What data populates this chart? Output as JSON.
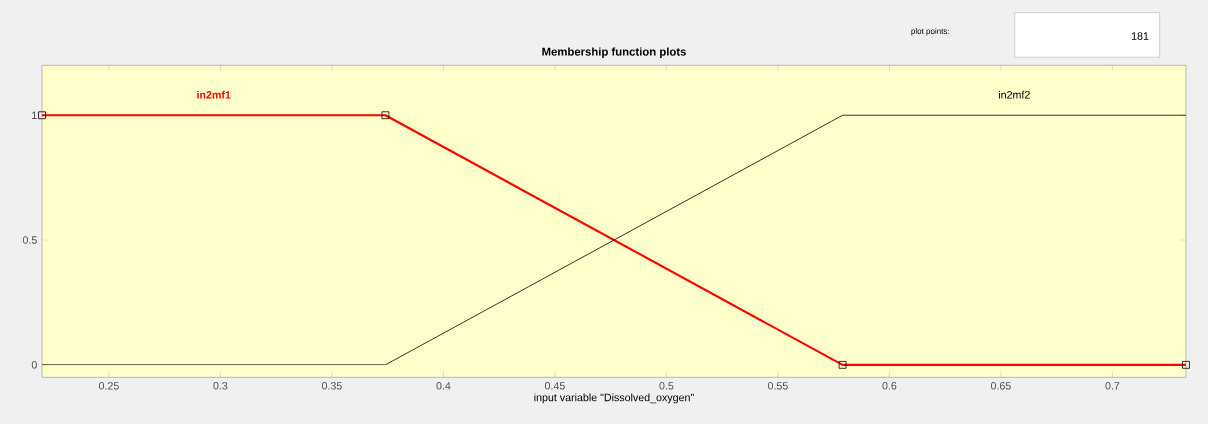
{
  "chart_data": {
    "type": "line",
    "title": "Membership function plots",
    "xlabel": "input variable \"Dissolved_oxygen\"",
    "annotations": [
      "plot points:",
      "181"
    ],
    "xlim": [
      0.22,
      0.733
    ],
    "ylim": [
      -0.05,
      1.2
    ],
    "xticks": [
      0.25,
      0.3,
      0.35,
      0.4,
      0.45,
      0.5,
      0.55,
      0.6,
      0.65,
      0.7
    ],
    "yticks": [
      0,
      0.5,
      1
    ],
    "grid": false,
    "series": [
      {
        "name": "in2mf1",
        "color": "#ff0000",
        "x": [
          0.22,
          0.374,
          0.579,
          0.733
        ],
        "values": [
          1,
          1,
          0,
          0
        ],
        "marker": "square"
      },
      {
        "name": "in2mf2",
        "color": "#000000",
        "x": [
          0.22,
          0.374,
          0.579,
          0.733
        ],
        "values": [
          0,
          0,
          1,
          1
        ],
        "marker": "none"
      }
    ]
  }
}
